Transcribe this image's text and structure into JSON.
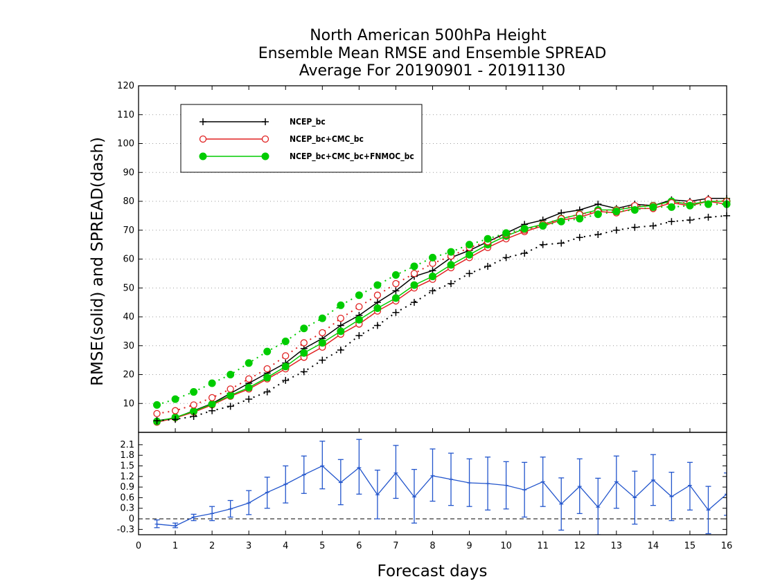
{
  "chart_data": [
    {
      "type": "line",
      "title_lines": [
        "North American 500hPa Height",
        "Ensemble Mean RMSE and Ensemble SPREAD",
        "Average For 20190901 - 20191130"
      ],
      "ylabel": "RMSE(solid) and SPREAD(dash)",
      "xlim": [
        0,
        16
      ],
      "ylim": [
        0,
        120
      ],
      "yticks": [
        10,
        20,
        30,
        40,
        50,
        60,
        70,
        80,
        90,
        100,
        110,
        120
      ],
      "grid": "horizontal dotted",
      "legend_position": "top-left",
      "x": [
        0.5,
        1,
        1.5,
        2,
        2.5,
        3,
        3.5,
        4,
        4.5,
        5,
        5.5,
        6,
        6.5,
        7,
        7.5,
        8,
        8.5,
        9,
        9.5,
        10,
        10.5,
        11,
        11.5,
        12,
        12.5,
        13,
        13.5,
        14,
        14.5,
        15,
        15.5,
        16
      ],
      "series": [
        {
          "name": "NCEP_bc",
          "color": "#000000",
          "marker": "plus",
          "kind": "rmse",
          "values": [
            4,
            5,
            7.5,
            10,
            13.5,
            17,
            20.5,
            24,
            29,
            32.5,
            37,
            40.5,
            45,
            49,
            54,
            56,
            60.5,
            63,
            66,
            69,
            72,
            73.5,
            76,
            77,
            79,
            77.5,
            79,
            78.5,
            80.5,
            80,
            81,
            81
          ]
        },
        {
          "name": "NCEP_bc+CMC_bc",
          "color": "#e02020",
          "marker": "circle-open",
          "kind": "rmse",
          "values": [
            3.5,
            5,
            7,
            9.5,
            12.5,
            15,
            18.5,
            22,
            26,
            29.5,
            34,
            37.5,
            42,
            45.5,
            50,
            53,
            57,
            60.5,
            64,
            67,
            69.5,
            71.5,
            73.5,
            74.5,
            76.5,
            76,
            77.5,
            77.5,
            79.5,
            78.5,
            80,
            79
          ]
        },
        {
          "name": "NCEP_bc+CMC_bc+FNMOC_bc",
          "color": "#00cc00",
          "marker": "circle-filled",
          "kind": "rmse",
          "values": [
            3.8,
            5.2,
            7.3,
            9.8,
            12.8,
            15.5,
            19,
            22.8,
            27.5,
            31,
            35,
            39,
            43,
            46.5,
            51,
            54,
            58,
            61.5,
            65,
            68,
            70.5,
            72,
            74,
            75.5,
            77,
            77,
            78,
            78.5,
            80,
            79,
            80,
            80
          ]
        },
        {
          "name": "NCEP_bc",
          "color": "#000000",
          "marker": "plus",
          "kind": "spread",
          "values": [
            4,
            4.5,
            5.5,
            7.5,
            9,
            11.5,
            14,
            18,
            21,
            25,
            28.5,
            33.5,
            37,
            41.5,
            45,
            49,
            51.5,
            55,
            57.5,
            60.5,
            62,
            65,
            65.5,
            67.5,
            68.5,
            70,
            71,
            71.5,
            73,
            73.5,
            74.5,
            75
          ]
        },
        {
          "name": "NCEP_bc+CMC_bc",
          "color": "#e02020",
          "marker": "circle-open",
          "kind": "spread",
          "values": [
            6.5,
            7.5,
            9.5,
            12,
            15,
            18.5,
            22,
            26.5,
            31,
            34.5,
            39.5,
            43.5,
            47.5,
            51.5,
            55,
            58.5,
            61,
            64,
            66,
            68.5,
            70,
            72,
            74,
            75.5,
            76.5,
            77,
            78.5,
            78.5,
            79.5,
            79.5,
            80.5,
            80
          ]
        },
        {
          "name": "NCEP_bc+CMC_bc+FNMOC_bc",
          "color": "#00cc00",
          "marker": "circle-filled",
          "kind": "spread",
          "values": [
            9.5,
            11.5,
            14,
            17,
            20,
            24,
            28,
            31.5,
            36,
            39.5,
            44,
            47.5,
            51,
            54.5,
            57.5,
            60.5,
            62.5,
            65,
            67,
            69,
            70.5,
            71.5,
            73,
            74,
            75.5,
            76.5,
            77,
            78,
            78,
            78.5,
            79,
            79
          ]
        }
      ]
    },
    {
      "type": "line",
      "xlabel": "Forecast days",
      "xlim": [
        0,
        16
      ],
      "xticks": [
        0,
        1,
        2,
        3,
        4,
        5,
        6,
        7,
        8,
        9,
        10,
        11,
        12,
        13,
        14,
        15,
        16
      ],
      "ylim": [
        -0.45,
        2.45
      ],
      "yticks": [
        "-0.3",
        "0",
        "0.3",
        "0.6",
        "0.9",
        "1.2",
        "1.5",
        "1.8",
        "2.1"
      ],
      "zero_line": "dashed",
      "color": "#2255cc",
      "x": [
        0.5,
        1,
        1.5,
        2,
        2.5,
        3,
        3.5,
        4,
        4.5,
        5,
        5.5,
        6,
        6.5,
        7,
        7.5,
        8,
        8.5,
        9,
        9.5,
        10,
        10.5,
        11,
        11.5,
        12,
        12.5,
        13,
        13.5,
        14,
        14.5,
        15,
        15.5,
        16
      ],
      "values": [
        -0.15,
        -0.2,
        0.05,
        0.15,
        0.28,
        0.45,
        0.75,
        0.98,
        1.25,
        1.5,
        1.03,
        1.45,
        0.68,
        1.3,
        0.62,
        1.22,
        1.12,
        1.02,
        1.0,
        0.95,
        0.82,
        1.05,
        0.42,
        0.92,
        0.33,
        1.05,
        0.6,
        1.1,
        0.63,
        0.95,
        0.25,
        0.7
      ],
      "error_low": [
        -0.25,
        -0.25,
        -0.05,
        -0.05,
        0.05,
        0.12,
        0.3,
        0.45,
        0.72,
        0.85,
        0.4,
        0.7,
        0.0,
        0.58,
        -0.12,
        0.5,
        0.38,
        0.35,
        0.25,
        0.28,
        0.05,
        0.35,
        -0.32,
        0.15,
        -0.45,
        0.3,
        -0.15,
        0.38,
        -0.05,
        0.25,
        -0.42,
        0.1
      ],
      "error_high": [
        -0.03,
        -0.12,
        0.13,
        0.35,
        0.52,
        0.8,
        1.18,
        1.5,
        1.78,
        2.2,
        1.68,
        2.25,
        1.38,
        2.08,
        1.4,
        1.98,
        1.86,
        1.7,
        1.75,
        1.62,
        1.6,
        1.75,
        1.16,
        1.7,
        1.15,
        1.78,
        1.35,
        1.82,
        1.32,
        1.6,
        0.92,
        1.3
      ]
    }
  ]
}
